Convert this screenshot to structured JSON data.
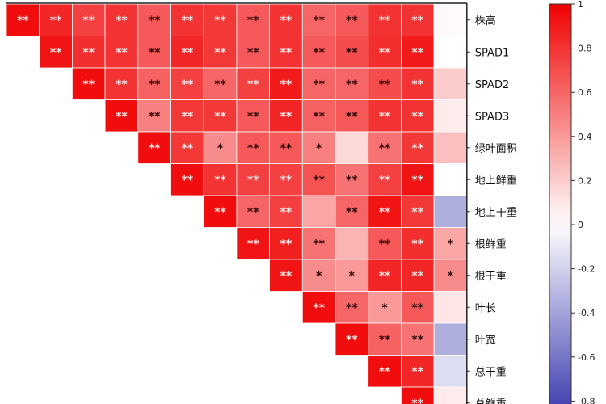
{
  "chart_data": {
    "type": "heatmap",
    "title": "",
    "row_labels": [
      "株高",
      "SPAD1",
      "SPAD2",
      "SPAD3",
      "绿叶面积",
      "地上鲜重",
      "地上干重",
      "根鲜重",
      "根干重",
      "叶长",
      "叶宽",
      "总干重",
      "总鲜重"
    ],
    "layout": "upper-triangle",
    "values": [
      [
        0.95,
        0.85,
        0.75,
        0.8,
        0.65,
        0.8,
        0.78,
        0.65,
        0.8,
        0.6,
        0.65,
        0.8,
        0.8,
        0.02
      ],
      [
        null,
        0.92,
        0.82,
        0.8,
        0.65,
        0.85,
        0.78,
        0.65,
        0.8,
        0.65,
        0.7,
        0.82,
        0.9,
        0.0
      ],
      [
        null,
        null,
        0.95,
        0.8,
        0.62,
        0.75,
        0.6,
        0.75,
        0.9,
        0.6,
        0.6,
        0.7,
        0.8,
        0.2
      ],
      [
        null,
        null,
        null,
        0.95,
        0.5,
        0.78,
        0.78,
        0.65,
        0.85,
        0.62,
        0.65,
        0.8,
        0.8,
        0.08
      ],
      [
        null,
        null,
        null,
        null,
        0.95,
        0.78,
        0.45,
        0.65,
        0.65,
        0.5,
        0.15,
        0.55,
        0.78,
        0.25
      ],
      [
        null,
        null,
        null,
        null,
        null,
        0.95,
        0.8,
        0.75,
        0.75,
        0.68,
        0.55,
        0.75,
        0.92,
        0.0
      ],
      [
        null,
        null,
        null,
        null,
        null,
        null,
        0.95,
        0.6,
        0.75,
        0.35,
        0.6,
        0.92,
        0.78,
        -0.35
      ],
      [
        null,
        null,
        null,
        null,
        null,
        null,
        null,
        0.92,
        0.88,
        0.55,
        0.3,
        0.65,
        0.82,
        0.35
      ],
      [
        null,
        null,
        null,
        null,
        null,
        null,
        null,
        null,
        0.92,
        0.45,
        0.4,
        0.85,
        0.85,
        0.45
      ],
      [
        null,
        null,
        null,
        null,
        null,
        null,
        null,
        null,
        null,
        0.95,
        0.6,
        0.4,
        0.65,
        0.1
      ],
      [
        null,
        null,
        null,
        null,
        null,
        null,
        null,
        null,
        null,
        null,
        0.95,
        0.62,
        0.55,
        -0.35
      ],
      [
        null,
        null,
        null,
        null,
        null,
        null,
        null,
        null,
        null,
        null,
        null,
        0.95,
        0.85,
        -0.15
      ],
      [
        null,
        null,
        null,
        null,
        null,
        null,
        null,
        null,
        null,
        null,
        null,
        null,
        0.95,
        0.08
      ]
    ],
    "significance": [
      [
        "**",
        "**",
        "**",
        "**",
        "**",
        "**",
        "**",
        "**",
        "**",
        "**",
        "**",
        "**",
        "**",
        ""
      ],
      [
        null,
        "**",
        "**",
        "**",
        "**",
        "**",
        "**",
        "**",
        "**",
        "**",
        "**",
        "**",
        "**",
        ""
      ],
      [
        null,
        null,
        "**",
        "**",
        "**",
        "**",
        "**",
        "**",
        "**",
        "**",
        "**",
        "**",
        "**",
        ""
      ],
      [
        null,
        null,
        null,
        "**",
        "**",
        "**",
        "**",
        "**",
        "**",
        "**",
        "**",
        "**",
        "**",
        ""
      ],
      [
        null,
        null,
        null,
        null,
        "**",
        "**",
        "*",
        "**",
        "**",
        "*",
        "",
        "**",
        "**",
        ""
      ],
      [
        null,
        null,
        null,
        null,
        null,
        "**",
        "**",
        "**",
        "**",
        "**",
        "**",
        "**",
        "**",
        ""
      ],
      [
        null,
        null,
        null,
        null,
        null,
        null,
        "**",
        "**",
        "**",
        "",
        "**",
        "**",
        "**",
        ""
      ],
      [
        null,
        null,
        null,
        null,
        null,
        null,
        null,
        "**",
        "**",
        "**",
        "",
        "**",
        "**",
        "*"
      ],
      [
        null,
        null,
        null,
        null,
        null,
        null,
        null,
        null,
        "**",
        "*",
        "*",
        "**",
        "**",
        "*"
      ],
      [
        null,
        null,
        null,
        null,
        null,
        null,
        null,
        null,
        null,
        "**",
        "**",
        "*",
        "**",
        ""
      ],
      [
        null,
        null,
        null,
        null,
        null,
        null,
        null,
        null,
        null,
        null,
        "**",
        "**",
        "**",
        ""
      ],
      [
        null,
        null,
        null,
        null,
        null,
        null,
        null,
        null,
        null,
        null,
        null,
        "**",
        "**",
        ""
      ],
      [
        null,
        null,
        null,
        null,
        null,
        null,
        null,
        null,
        null,
        null,
        null,
        null,
        "**",
        ""
      ]
    ],
    "colorbar": {
      "range": [
        -0.9,
        1
      ],
      "ticks": [
        "1",
        "0.8",
        "0.6",
        "0.4",
        "0.2",
        "0",
        "-0.2",
        "-0.4",
        "-0.6",
        "-0.8"
      ],
      "tick_values": [
        1,
        0.8,
        0.6,
        0.4,
        0.2,
        0,
        -0.2,
        -0.4,
        -0.6,
        -0.8
      ],
      "colors": {
        "positive": "#f00000",
        "zero": "#ffffff",
        "negative": "#1a1aa0"
      }
    }
  }
}
